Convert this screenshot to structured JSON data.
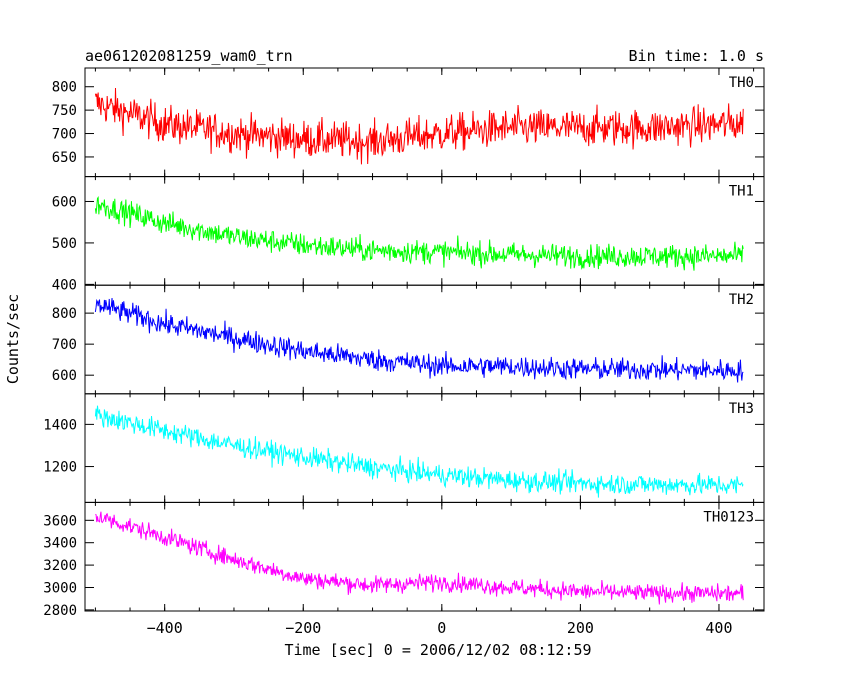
{
  "header": {
    "title": "ae061202081259_wam0_trn",
    "bin_time": "Bin time: 1.0 s"
  },
  "chart_data": {
    "type": "line",
    "xlabel": "Time [sec] 0 = 2006/12/02 08:12:59",
    "ylabel": "Counts/sec",
    "xlim": [
      -515,
      465
    ],
    "x_ticks": [
      -400,
      -200,
      0,
      200,
      400
    ],
    "x_tick_labels": [
      "−400",
      "−200",
      "0",
      "200",
      "400"
    ],
    "x_range": [
      -500,
      435
    ],
    "panels": [
      {
        "name": "TH0",
        "color": "#ff0000",
        "ylim": [
          608,
          840
        ],
        "yticks": [
          650,
          700,
          750,
          800
        ],
        "ytick_labels": [
          "650",
          "700",
          "750",
          "800"
        ],
        "trend_x": [
          -500,
          -400,
          -300,
          -200,
          -100,
          0,
          100,
          200,
          300,
          435
        ],
        "trend_y": [
          765,
          720,
          700,
          688,
          683,
          700,
          712,
          712,
          712,
          722
        ],
        "noise": 28
      },
      {
        "name": "TH1",
        "color": "#00ff00",
        "ylim": [
          398,
          660
        ],
        "yticks": [
          400,
          500,
          600
        ],
        "ytick_labels": [
          "400",
          "500",
          "600"
        ],
        "trend_x": [
          -500,
          -400,
          -300,
          -200,
          -100,
          0,
          100,
          200,
          300,
          435
        ],
        "trend_y": [
          595,
          548,
          515,
          495,
          482,
          478,
          472,
          468,
          468,
          468
        ],
        "noise": 20
      },
      {
        "name": "TH2",
        "color": "#0000ff",
        "ylim": [
          540,
          890
        ],
        "yticks": [
          600,
          700,
          800
        ],
        "ytick_labels": [
          "600",
          "700",
          "800"
        ],
        "trend_x": [
          -500,
          -400,
          -300,
          -200,
          -100,
          0,
          100,
          200,
          300,
          435
        ],
        "trend_y": [
          830,
          765,
          720,
          678,
          650,
          630,
          628,
          620,
          618,
          615
        ],
        "noise": 25
      },
      {
        "name": "TH3",
        "color": "#00ffff",
        "ylim": [
          1030,
          1545
        ],
        "yticks": [
          1200,
          1400
        ],
        "ytick_labels": [
          "1200",
          "1400"
        ],
        "trend_x": [
          -500,
          -400,
          -300,
          -200,
          -100,
          0,
          100,
          200,
          300,
          435
        ],
        "trend_y": [
          1445,
          1370,
          1300,
          1245,
          1195,
          1160,
          1135,
          1120,
          1115,
          1110
        ],
        "noise": 35
      },
      {
        "name": "TH0123",
        "color": "#ff00ff",
        "ylim": [
          2790,
          3760
        ],
        "yticks": [
          2800,
          3000,
          3200,
          3400,
          3600
        ],
        "ytick_labels": [
          "2800",
          "3000",
          "3200",
          "3400",
          "3600"
        ],
        "trend_x": [
          -500,
          -400,
          -300,
          -200,
          -100,
          0,
          100,
          200,
          300,
          435
        ],
        "trend_y": [
          3640,
          3450,
          3250,
          3080,
          3020,
          3050,
          3000,
          2965,
          2950,
          2945
        ],
        "noise": 55
      }
    ]
  }
}
